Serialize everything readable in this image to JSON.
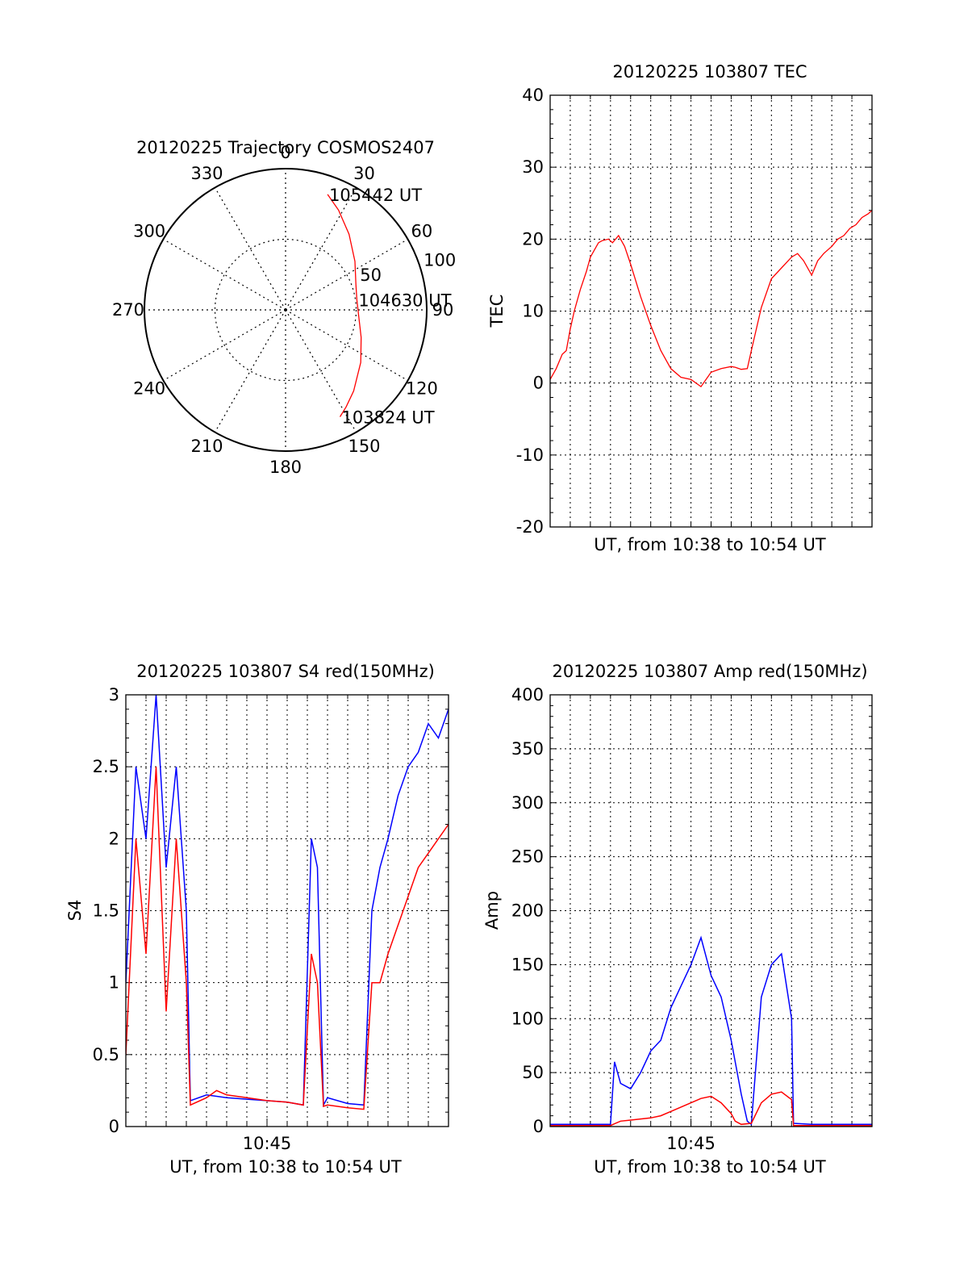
{
  "chart_data": [
    {
      "type": "polar",
      "title": "20120225 Trajectory COSMOS2407",
      "angle_labels": [
        "0",
        "30",
        "60",
        "90",
        "120",
        "150",
        "180",
        "210",
        "240",
        "270",
        "300",
        "330"
      ],
      "radial_labels": [
        "50",
        "100"
      ],
      "series": [
        {
          "points": [
            [
              20,
              87
            ],
            [
              28,
              80
            ],
            [
              40,
              70
            ],
            [
              55,
              60
            ],
            [
              70,
              53
            ],
            [
              82,
              51
            ],
            [
              95,
              52
            ],
            [
              110,
              57
            ],
            [
              125,
              65
            ],
            [
              140,
              75
            ],
            [
              148,
              81
            ],
            [
              153,
              85
            ]
          ],
          "color": "#ff0000"
        }
      ],
      "annotations": [
        {
          "text": "105442 UT",
          "angle": 20,
          "radius": 87
        },
        {
          "text": "104630 UT",
          "angle": 82,
          "radius": 51
        },
        {
          "text": "103824 UT",
          "angle": 153,
          "radius": 85
        }
      ]
    },
    {
      "type": "line",
      "title": "20120225 103807 TEC",
      "xlabel": "UT, from 10:38 to 10:54 UT",
      "ylabel": "TEC",
      "ylim": [
        -20,
        40
      ],
      "yticks": [
        "-20",
        "-10",
        "0",
        "10",
        "20",
        "30",
        "40"
      ],
      "xlim": [
        0,
        16
      ],
      "series": [
        {
          "color": "#ff0000",
          "x": [
            0.0,
            0.3,
            0.6,
            0.8,
            1.0,
            1.2,
            1.5,
            1.8,
            2.0,
            2.2,
            2.4,
            2.6,
            2.9,
            3.1,
            3.4,
            3.7,
            4.0,
            4.5,
            5.0,
            5.5,
            6.0,
            6.5,
            7.0,
            7.5,
            8.0,
            8.5,
            9.0,
            9.2,
            9.5,
            9.8,
            10.0,
            10.5,
            11.0,
            11.5,
            12.0,
            12.3,
            12.6,
            13.0,
            13.3,
            13.6,
            14.0,
            14.3,
            14.6,
            14.9,
            15.2,
            15.5,
            15.8,
            16.0
          ],
          "y": [
            0.5,
            2.0,
            4.0,
            4.5,
            7.5,
            10.0,
            13.0,
            15.5,
            17.5,
            18.5,
            19.5,
            19.8,
            20.0,
            19.5,
            20.5,
            19.0,
            16.5,
            12.0,
            8.0,
            4.5,
            2.0,
            0.8,
            0.5,
            -0.5,
            1.5,
            2.0,
            2.3,
            2.2,
            1.9,
            2.0,
            4.5,
            10.5,
            14.5,
            16.0,
            17.5,
            18.0,
            17.0,
            15.0,
            17.0,
            18.0,
            19.0,
            20.0,
            20.5,
            21.5,
            22.0,
            23.0,
            23.5,
            24.0
          ]
        }
      ]
    },
    {
      "type": "line",
      "title": "20120225 103807 S4 red(150MHz)",
      "xlabel": "UT, from 10:38 to 10:54 UT",
      "ylabel": "S4",
      "ylim": [
        0,
        3
      ],
      "yticks": [
        "0",
        "0.5",
        "1",
        "1.5",
        "2",
        "2.5",
        "3"
      ],
      "xticks": [
        {
          "label": "10:45",
          "x": 7
        }
      ],
      "xlim": [
        0,
        16
      ],
      "series": [
        {
          "color": "#0000ff",
          "x": [
            0.0,
            0.5,
            1.0,
            1.5,
            2.0,
            2.5,
            3.0,
            3.2,
            4.0,
            5.0,
            6.0,
            7.0,
            8.0,
            8.8,
            9.2,
            9.5,
            9.8,
            10.0,
            11.0,
            11.8,
            12.2,
            12.6,
            13.0,
            13.5,
            14.0,
            14.5,
            15.0,
            15.5,
            16.0
          ],
          "y": [
            1.0,
            2.5,
            2.0,
            3.0,
            1.8,
            2.5,
            1.5,
            0.18,
            0.22,
            0.2,
            0.19,
            0.18,
            0.17,
            0.15,
            2.0,
            1.8,
            0.15,
            0.2,
            0.16,
            0.15,
            1.5,
            1.8,
            2.0,
            2.3,
            2.5,
            2.6,
            2.8,
            2.7,
            2.9
          ]
        },
        {
          "color": "#ff0000",
          "x": [
            0.0,
            0.5,
            1.0,
            1.5,
            2.0,
            2.5,
            3.0,
            3.2,
            4.0,
            4.5,
            5.0,
            6.0,
            7.0,
            8.0,
            8.8,
            9.2,
            9.5,
            9.8,
            10.0,
            11.0,
            11.8,
            12.2,
            12.6,
            13.0,
            13.5,
            14.0,
            14.5,
            15.0,
            15.5,
            16.0
          ],
          "y": [
            0.5,
            2.0,
            1.2,
            2.5,
            0.8,
            2.0,
            1.0,
            0.15,
            0.2,
            0.25,
            0.22,
            0.2,
            0.18,
            0.17,
            0.15,
            1.2,
            1.0,
            0.14,
            0.15,
            0.13,
            0.12,
            1.0,
            1.0,
            1.2,
            1.4,
            1.6,
            1.8,
            1.9,
            2.0,
            2.1
          ]
        }
      ]
    },
    {
      "type": "line",
      "title": "20120225 103807 Amp red(150MHz)",
      "xlabel": "UT, from 10:38 to 10:54 UT",
      "ylabel": "Amp",
      "ylim": [
        0,
        400
      ],
      "yticks": [
        "0",
        "50",
        "100",
        "150",
        "200",
        "250",
        "300",
        "350",
        "400"
      ],
      "xticks": [
        {
          "label": "10:45",
          "x": 7
        }
      ],
      "xlim": [
        0,
        16
      ],
      "series": [
        {
          "color": "#0000ff",
          "x": [
            0.0,
            3.0,
            3.2,
            3.5,
            4.0,
            4.5,
            5.0,
            5.5,
            6.0,
            6.5,
            7.0,
            7.5,
            8.0,
            8.5,
            9.0,
            9.5,
            9.8,
            10.0,
            10.5,
            11.0,
            11.5,
            12.0,
            12.1,
            13.0,
            14.0,
            15.0,
            16.0
          ],
          "y": [
            2,
            2,
            60,
            40,
            35,
            50,
            70,
            80,
            110,
            130,
            150,
            175,
            140,
            120,
            80,
            30,
            5,
            2,
            120,
            150,
            160,
            100,
            3,
            2,
            2,
            2,
            2
          ]
        },
        {
          "color": "#ff0000",
          "x": [
            0.0,
            3.0,
            3.5,
            4.0,
            4.5,
            5.0,
            5.5,
            6.0,
            6.5,
            7.0,
            7.5,
            8.0,
            8.5,
            9.0,
            9.2,
            9.5,
            10.0,
            10.5,
            11.0,
            11.5,
            12.0,
            12.1,
            13.0,
            16.0
          ],
          "y": [
            1,
            1,
            5,
            6,
            7,
            8,
            10,
            14,
            18,
            22,
            26,
            28,
            22,
            12,
            5,
            2,
            3,
            22,
            30,
            32,
            25,
            1,
            1,
            1
          ]
        }
      ]
    }
  ]
}
